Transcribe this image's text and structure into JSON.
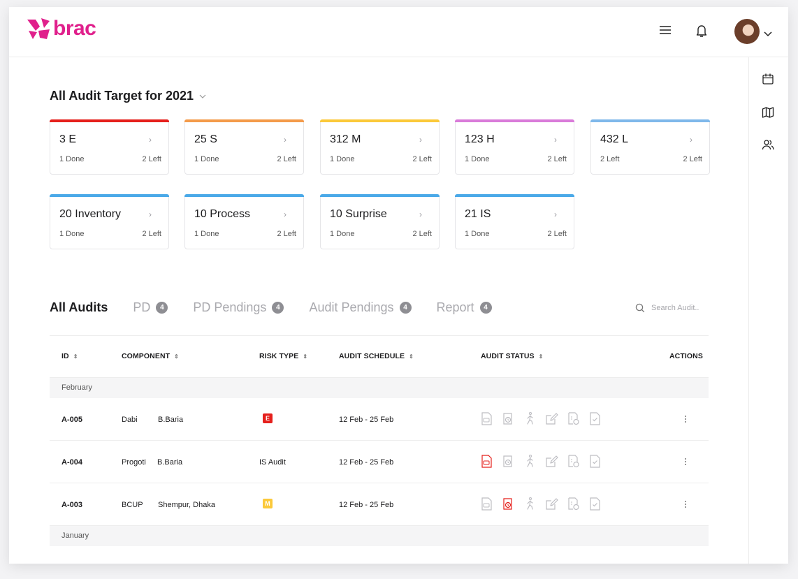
{
  "brand": {
    "name": "brac",
    "color": "#e0208c"
  },
  "header": {
    "menu_icon": "hamburger-menu-icon",
    "bell_icon": "bell-icon",
    "avatar_icon": "user-avatar"
  },
  "rail": {
    "icons": [
      "calendar-icon",
      "map-icon",
      "users-icon"
    ]
  },
  "targets": {
    "title": "All Audit Target for 2021",
    "cards": [
      {
        "name": "3 E",
        "done": "1 Done",
        "left": "2 Left",
        "color": "#e5201c"
      },
      {
        "name": "25 S",
        "done": "1 Done",
        "left": "2 Left",
        "color": "#f49b4a"
      },
      {
        "name": "312 M",
        "done": "1 Done",
        "left": "2 Left",
        "color": "#fbc93a"
      },
      {
        "name": "123 H",
        "done": "1 Done",
        "left": "2 Left",
        "color": "#d97bd9"
      },
      {
        "name": "432 L",
        "done": "2 Left",
        "left": "2 Left",
        "color": "#7fb8ea"
      },
      {
        "name": "20 Inventory",
        "done": "1 Done",
        "left": "2 Left",
        "color": "#4aa9e8"
      },
      {
        "name": "10 Process",
        "done": "1 Done",
        "left": "2 Left",
        "color": "#4aa9e8"
      },
      {
        "name": "10 Surprise",
        "done": "1 Done",
        "left": "2 Left",
        "color": "#4aa9e8"
      },
      {
        "name": "21 IS",
        "done": "1 Done",
        "left": "2 Left",
        "color": "#4aa9e8"
      }
    ]
  },
  "tabs": [
    {
      "label": "All Audits",
      "badge": ""
    },
    {
      "label": "PD",
      "badge": "4"
    },
    {
      "label": "PD Pendings",
      "badge": "4"
    },
    {
      "label": "Audit Pendings",
      "badge": "4"
    },
    {
      "label": "Report",
      "badge": "4"
    }
  ],
  "search": {
    "placeholder": "Search Audit.."
  },
  "table": {
    "columns": [
      "ID",
      "COMPONENT",
      "RISK TYPE",
      "AUDIT SCHEDULE",
      "AUDIT STATUS",
      "ACTIONS"
    ],
    "groups": [
      {
        "label": "February",
        "rows": [
          {
            "id": "A-005",
            "component": "Dabi",
            "location": "B.Baria",
            "risk": "E",
            "risk_color": "#e5201c",
            "risk_text": "",
            "schedule": "12 Feb - 25 Feb",
            "active_icon": -1
          },
          {
            "id": "A-004",
            "component": "Progoti",
            "location": "B.Baria",
            "risk": "",
            "risk_color": "",
            "risk_text": "IS Audit",
            "schedule": "12 Feb - 25 Feb",
            "active_icon": 0
          },
          {
            "id": "A-003",
            "component": "BCUP",
            "location": "Shempur, Dhaka",
            "risk": "M",
            "risk_color": "#fbc93a",
            "risk_text": "",
            "schedule": "12 Feb - 25 Feb",
            "active_icon": 1
          }
        ]
      },
      {
        "label": "January",
        "rows": []
      }
    ],
    "status_icons": [
      "pdf-icon",
      "timer-icon",
      "walking-icon",
      "edit-icon",
      "schedule-doc-icon",
      "check-doc-icon"
    ]
  }
}
